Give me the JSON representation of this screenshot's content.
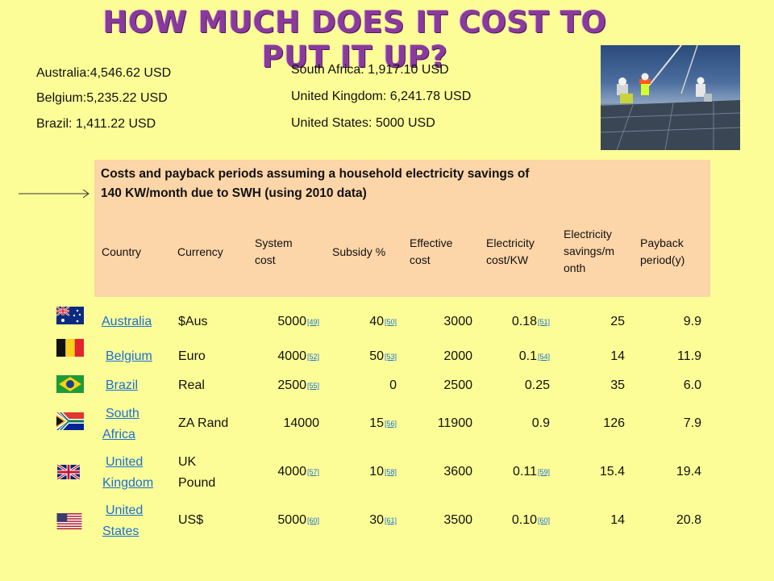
{
  "title": "HOW MUCH DOES IT COST TO PUT IT UP?",
  "costs_left": [
    "Australia:4,546.62 USD",
    "Belgium:5,235.22 USD",
    "Brazil: 1,411.22 USD"
  ],
  "costs_right": [
    "South Africa: 1,917.10 USD",
    "United Kingdom: 6,241.78 USD",
    "United States: 5000 USD"
  ],
  "table": {
    "caption_line1": "Costs and payback periods assuming a household electricity savings of",
    "caption_line2": "140 KW/month due to SWH (using 2010 data)",
    "headers": {
      "country": "Country",
      "currency": "Currency",
      "system_cost_1": "System",
      "system_cost_2": "cost",
      "subsidy": "Subsidy %",
      "effective_1": "Effective",
      "effective_2": "cost",
      "elec_cost_1": "Electricity",
      "elec_cost_2": "cost/KW",
      "savings_1": "Electricity",
      "savings_2": "savings/m",
      "savings_3": "onth",
      "payback_1": "Payback",
      "payback_2": "period(y)"
    },
    "rows": [
      {
        "country_1": "Australia",
        "country_2": "",
        "currency_1": "$Aus",
        "currency_2": "",
        "system_cost": "5000",
        "system_ref": "[49]",
        "subsidy": "40",
        "subsidy_ref": "[50]",
        "effective": "3000",
        "elec_cost": "0.18",
        "elec_ref": "[51]",
        "savings": "25",
        "payback": "9.9"
      },
      {
        "country_1": "Belgium",
        "country_2": "",
        "currency_1": "Euro",
        "currency_2": "",
        "system_cost": "4000",
        "system_ref": "[52]",
        "subsidy": "50",
        "subsidy_ref": "[53]",
        "effective": "2000",
        "elec_cost": "0.1",
        "elec_ref": "[54]",
        "savings": "14",
        "payback": "11.9"
      },
      {
        "country_1": "Brazil",
        "country_2": "",
        "currency_1": "Real",
        "currency_2": "",
        "system_cost": "2500",
        "system_ref": "[55]",
        "subsidy": "0",
        "subsidy_ref": "",
        "effective": "2500",
        "elec_cost": "0.25",
        "elec_ref": "",
        "savings": "35",
        "payback": "6.0"
      },
      {
        "country_1": "South",
        "country_2": "Africa",
        "currency_1": "ZA Rand",
        "currency_2": "",
        "system_cost": "14000",
        "system_ref": "",
        "subsidy": "15",
        "subsidy_ref": "[56]",
        "effective": "11900",
        "elec_cost": "0.9",
        "elec_ref": "",
        "savings": "126",
        "payback": "7.9"
      },
      {
        "country_1": "United",
        "country_2": "Kingdom",
        "currency_1": "UK",
        "currency_2": "Pound",
        "system_cost": "4000",
        "system_ref": "[57]",
        "subsidy": "10",
        "subsidy_ref": "[58]",
        "effective": "3600",
        "elec_cost": "0.11",
        "elec_ref": "[59]",
        "savings": "15.4",
        "payback": "19.4"
      },
      {
        "country_1": "United",
        "country_2": "States",
        "currency_1": "US$",
        "currency_2": "",
        "system_cost": "5000",
        "system_ref": "[60]",
        "subsidy": "30",
        "subsidy_ref": "[61]",
        "effective": "3500",
        "elec_cost": "0.10",
        "elec_ref": "[60]",
        "savings": "14",
        "payback": "20.8"
      }
    ]
  },
  "colors": {
    "title": "#8a3a9c",
    "background": "#fdfd97",
    "header_bg": "#fcd5a8",
    "link": "#1a6fd6"
  }
}
